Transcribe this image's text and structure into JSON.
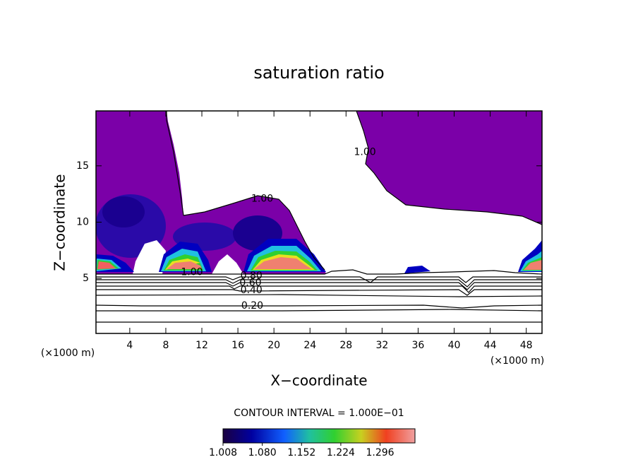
{
  "chart_data": {
    "type": "contour",
    "title": "saturation ratio",
    "x_label": "X−coordinate",
    "y_label": "Z−coordinate",
    "x_unit_label": "(×1000 m)",
    "y_unit_label": "(×1000 m)",
    "xlim": [
      0.25,
      49.75
    ],
    "xticks": [
      4,
      8,
      12,
      16,
      20,
      24,
      28,
      32,
      36,
      40,
      44,
      48
    ],
    "ylim": [
      0.125,
      19.875
    ],
    "yticks": [
      5,
      10,
      15
    ],
    "contour_labels": [
      {
        "value": 1,
        "label": "1.00",
        "x": 18.7,
        "y": 12.06
      },
      {
        "value": 1,
        "label": "1.00",
        "x": 30.1,
        "y": 16.2
      },
      {
        "value": 1,
        "label": "1.00",
        "x": 10.9,
        "y": 5.56
      },
      {
        "value": 0.8,
        "label": "0.80",
        "x": 17.5,
        "y": 5.25
      },
      {
        "value": 0.6,
        "label": "0.60",
        "x": 17.4,
        "y": 4.6
      },
      {
        "value": 0.4,
        "label": "0.40",
        "x": 17.5,
        "y": 3.94
      },
      {
        "value": 0.2,
        "label": "0.20",
        "x": 17.6,
        "y": 2.56
      }
    ],
    "contour_interval_label": "CONTOUR INTERVAL = 1.000E−01",
    "colorbar": {
      "lim": [
        1.008,
        1.36
      ],
      "ticks": [
        1.008,
        {
          "value": 1.08,
          "label": "1.080"
        },
        1.152,
        1.224,
        1.296
      ]
    }
  }
}
